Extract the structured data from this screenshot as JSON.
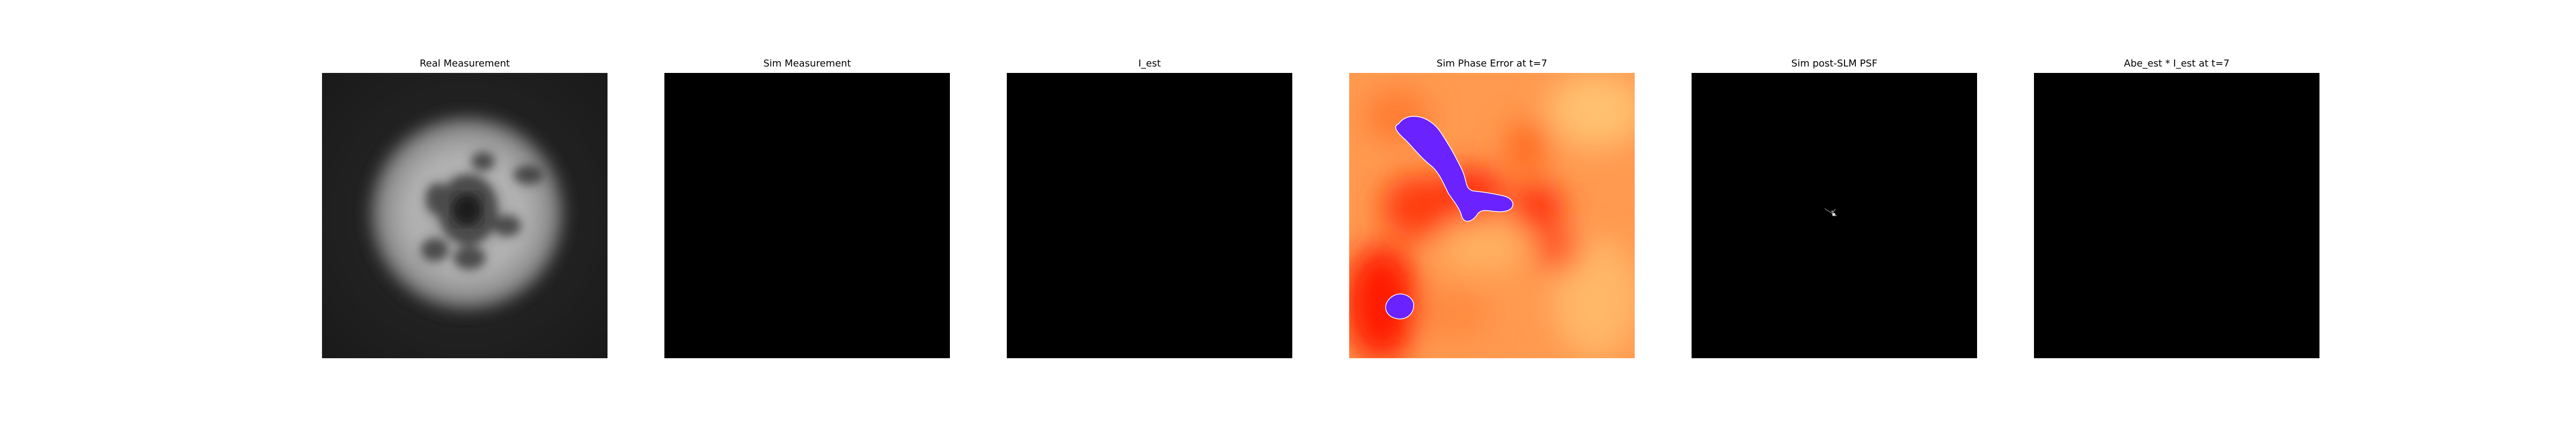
{
  "figure": {
    "panels": [
      {
        "title": "Real Measurement",
        "image": "grayscale-blurred-disk"
      },
      {
        "title": "Sim Measurement",
        "image": "black-field"
      },
      {
        "title": "I_est",
        "image": "black-field"
      },
      {
        "title": "Sim Phase Error at t=7",
        "image": "hot-colormap-phase-map-with-blue-wrapped-regions"
      },
      {
        "title": "Sim post-SLM PSF",
        "image": "black-field-with-small-bright-spot"
      },
      {
        "title": "Abe_est * I_est at t=7",
        "image": "black-field"
      }
    ],
    "colors": {
      "background": "#ffffff",
      "image_black": "#000000",
      "phase_hot_red": "#ff1a00",
      "phase_light_orange": "#ffb060",
      "phase_blue_region": "#6a22ff"
    }
  }
}
